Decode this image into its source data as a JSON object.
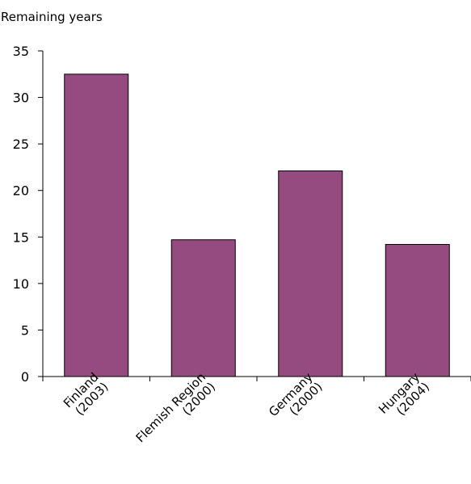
{
  "chart_data": {
    "type": "bar",
    "title": "",
    "xlabel": "",
    "ylabel": "Remaining years",
    "ylim": [
      0,
      35
    ],
    "yticks": [
      0,
      5,
      10,
      15,
      20,
      25,
      30,
      35
    ],
    "grid": false,
    "categories": [
      [
        "Finland",
        "(2003)"
      ],
      [
        "Flemish Region",
        "(2000)"
      ],
      [
        "Germany",
        "(2000)"
      ],
      [
        "Hungary",
        "(2004)"
      ]
    ],
    "values": [
      32.5,
      14.7,
      22.1,
      14.2
    ],
    "colors": {
      "bar_fill": "#954b80",
      "bar_stroke": "#000000",
      "axis": "#000000"
    }
  }
}
